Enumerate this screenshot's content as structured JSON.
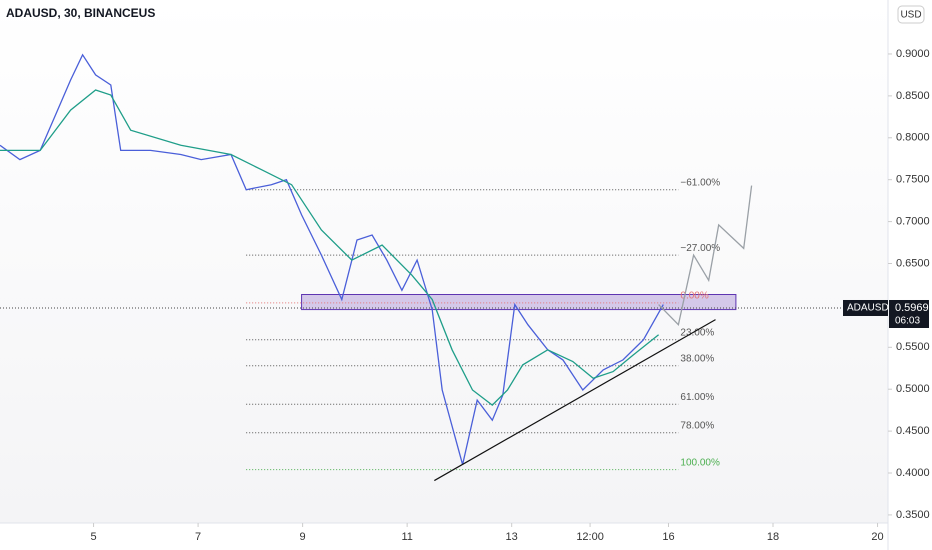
{
  "chart_data": {
    "type": "line",
    "title": "ADAUSD, 30, BINANCEUS",
    "currency": "USD",
    "series": [
      {
        "color": "#4a5fd9",
        "width": 1.3,
        "x": [
          3.21,
          3.59,
          3.98,
          4.27,
          4.56,
          4.79,
          5.04,
          5.33,
          5.52,
          6.09,
          6.67,
          7.06,
          7.63,
          7.92,
          8.4,
          8.69,
          8.98,
          9.36,
          9.75,
          10.04,
          10.33,
          10.61,
          10.9,
          11.19,
          11.48,
          11.67,
          12.06,
          12.34,
          12.63,
          12.83,
          13.06,
          13.31,
          13.69,
          13.98,
          14.36,
          14.75,
          15.13,
          15.52,
          15.9
        ],
        "values": [
          0.791,
          0.774,
          0.785,
          0.827,
          0.869,
          0.899,
          0.875,
          0.863,
          0.785,
          0.785,
          0.78,
          0.774,
          0.78,
          0.738,
          0.744,
          0.75,
          0.708,
          0.66,
          0.607,
          0.678,
          0.684,
          0.654,
          0.618,
          0.654,
          0.595,
          0.499,
          0.41,
          0.487,
          0.463,
          0.493,
          0.601,
          0.577,
          0.547,
          0.535,
          0.499,
          0.523,
          0.535,
          0.559,
          0.601
        ]
      },
      {
        "color": "#1f9e89",
        "width": 1.3,
        "x": [
          3.21,
          3.98,
          4.56,
          5.04,
          5.33,
          5.71,
          6.67,
          7.63,
          8.21,
          8.79,
          9.36,
          9.94,
          10.52,
          11.09,
          11.48,
          11.86,
          12.25,
          12.63,
          12.92,
          13.21,
          13.69,
          14.17,
          14.56,
          14.94,
          15.33,
          15.81
        ],
        "values": [
          0.785,
          0.785,
          0.833,
          0.857,
          0.851,
          0.809,
          0.791,
          0.78,
          0.762,
          0.744,
          0.69,
          0.654,
          0.672,
          0.636,
          0.607,
          0.547,
          0.499,
          0.481,
          0.499,
          0.529,
          0.547,
          0.533,
          0.513,
          0.521,
          0.541,
          0.565
        ]
      },
      {
        "color": "#9aa0a6",
        "width": 1.3,
        "x": [
          15.81,
          16.19,
          16.48,
          16.77,
          16.96,
          17.44,
          17.59
        ],
        "values": [
          0.601,
          0.577,
          0.66,
          0.63,
          0.696,
          0.668,
          0.743
        ]
      }
    ],
    "fib_levels": [
      {
        "label": "−61.00%",
        "value": 0.738,
        "color": "#555555"
      },
      {
        "label": "−27.00%",
        "value": 0.66,
        "color": "#555555"
      },
      {
        "label": "0.00%",
        "value": 0.603,
        "color": "#e57373"
      },
      {
        "label": "23.00%",
        "value": 0.559,
        "color": "#555555"
      },
      {
        "label": "38.00%",
        "value": 0.528,
        "color": "#555555"
      },
      {
        "label": "61.00%",
        "value": 0.482,
        "color": "#555555"
      },
      {
        "label": "78.00%",
        "value": 0.448,
        "color": "#555555"
      },
      {
        "label": "100.00%",
        "value": 0.404,
        "color": "#4caf50"
      }
    ],
    "fib_x": [
      7.92,
      16.19
    ],
    "zone": {
      "x": [
        8.98,
        17.29
      ],
      "values": [
        0.595,
        0.613
      ]
    },
    "trendline": {
      "x": [
        11.52,
        16.9
      ],
      "values": [
        0.391,
        0.583
      ]
    },
    "last": {
      "name": "ADAUSD",
      "value": 0.5969,
      "time": "06:03"
    },
    "xlim": [
      3.21,
      20.2
    ],
    "ylim": [
      0.332,
      0.9644
    ],
    "xticks": [
      5,
      7,
      9,
      11,
      13,
      {
        "value": 14.5,
        "label": "12:00"
      },
      16,
      18,
      20
    ],
    "yticks": [
      {
        "value": 0.9,
        "label": "0.9000"
      },
      {
        "value": 0.85,
        "label": "0.8500"
      },
      {
        "value": 0.8,
        "label": "0.8000"
      },
      {
        "value": 0.75,
        "label": "0.7500"
      },
      {
        "value": 0.7,
        "label": "0.7000"
      },
      {
        "value": 0.65,
        "label": "0.6500"
      },
      {
        "value": 0.55,
        "label": "0.5500"
      },
      {
        "value": 0.5,
        "label": "0.5000"
      },
      {
        "value": 0.45,
        "label": "0.4500"
      },
      {
        "value": 0.4,
        "label": "0.4000"
      },
      {
        "value": 0.35,
        "label": "0.3500"
      }
    ]
  }
}
